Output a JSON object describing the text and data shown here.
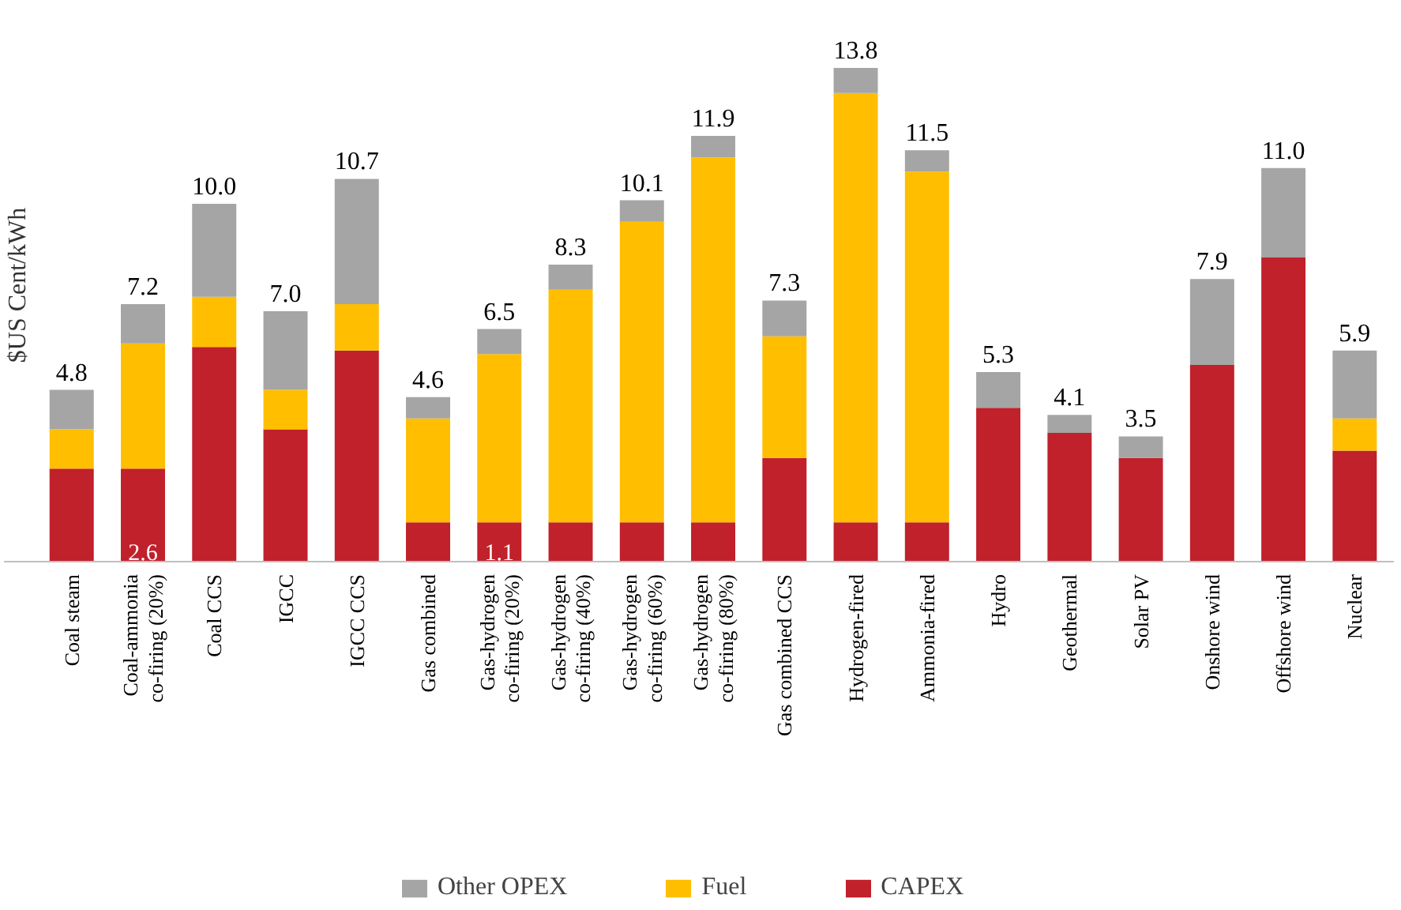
{
  "chart_data": {
    "type": "bar",
    "stacked": true,
    "ylabel": "$US Cent/kWh",
    "tick_labels": "x",
    "grid": false,
    "legend": "bottom",
    "categories": [
      "Coal steam",
      "Coal-ammonia\nco-firing (20%)",
      "Coal CCS",
      "IGCC",
      "IGCC CCS",
      "Gas combined",
      "Gas-hydrogen\nco-firing (20%)",
      "Gas-hydrogen\nco-firing (40%)",
      "Gas-hydrogen\nco-firing (60%)",
      "Gas-hydrogen\nco-firing (80%)",
      "Gas combined CCS",
      "Hydrogen-fired",
      "Ammonia-fired",
      "Hydro",
      "Geothermal",
      "Solar PV",
      "Onshore wind",
      "Offshore wind",
      "Nuclear"
    ],
    "series": [
      {
        "name": "CAPEX",
        "color": "#c0212b",
        "values": [
          2.6,
          2.6,
          6.0,
          3.7,
          5.9,
          1.1,
          1.1,
          1.1,
          1.1,
          1.1,
          2.9,
          1.1,
          1.1,
          4.3,
          3.6,
          2.9,
          5.5,
          8.5,
          3.1
        ],
        "value_labels": [
          null,
          "2.6",
          null,
          null,
          null,
          null,
          "1.1",
          null,
          null,
          null,
          null,
          null,
          null,
          null,
          null,
          null,
          null,
          null,
          null
        ]
      },
      {
        "name": "Fuel",
        "color": "#ffbf00",
        "values": [
          1.1,
          3.5,
          1.4,
          1.1,
          1.3,
          2.9,
          4.7,
          6.5,
          8.4,
          10.2,
          3.4,
          12.0,
          9.8,
          0,
          0,
          0,
          0,
          0,
          0.9
        ]
      },
      {
        "name": "Other OPEX",
        "color": "#a5a5a5",
        "values": [
          1.1,
          1.1,
          2.6,
          2.2,
          3.5,
          0.6,
          0.7,
          0.7,
          0.6,
          0.6,
          1.0,
          0.7,
          0.6,
          1.0,
          0.5,
          0.6,
          2.4,
          2.5,
          1.9
        ]
      }
    ],
    "totals": [
      "4.8",
      "7.2",
      "10.0",
      "7.0",
      "10.7",
      "4.6",
      "6.5",
      "8.3",
      "10.1",
      "11.9",
      "7.3",
      "13.8",
      "11.5",
      "5.3",
      "4.1",
      "3.5",
      "7.9",
      "11.0",
      "5.9"
    ]
  }
}
